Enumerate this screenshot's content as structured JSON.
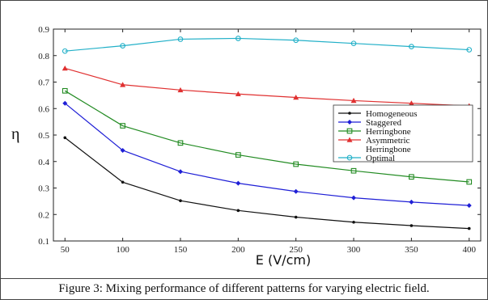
{
  "chart_data": {
    "type": "line",
    "xlabel": "E (V/cm)",
    "ylabel": "η",
    "xlim": [
      40,
      410
    ],
    "ylim": [
      0.1,
      0.9
    ],
    "x": [
      50,
      100,
      150,
      200,
      250,
      300,
      350,
      400
    ],
    "xticks": [
      "50",
      "100",
      "150",
      "200",
      "250",
      "300",
      "350",
      "400"
    ],
    "yticks": [
      "0.1",
      "0.2",
      "0.3",
      "0.4",
      "0.5",
      "0.6",
      "0.7",
      "0.8",
      "0.9"
    ],
    "grid": false,
    "legend_position": "right",
    "series": [
      {
        "name": "Homogeneous",
        "color": "#111111",
        "marker": "dot",
        "values": [
          0.49,
          0.322,
          0.252,
          0.215,
          0.19,
          0.171,
          0.158,
          0.147
        ]
      },
      {
        "name": "Staggered",
        "color": "#1f1fd6",
        "marker": "diamond",
        "values": [
          0.62,
          0.442,
          0.362,
          0.318,
          0.287,
          0.263,
          0.247,
          0.234
        ]
      },
      {
        "name": "Herringbone",
        "color": "#228b22",
        "marker": "square",
        "values": [
          0.667,
          0.535,
          0.47,
          0.425,
          0.39,
          0.365,
          0.342,
          0.323
        ]
      },
      {
        "name": "Asymmetric Herringbone",
        "legend_lines": [
          "Asymmetric",
          "Herringbone"
        ],
        "color": "#e03030",
        "marker": "triangle",
        "values": [
          0.752,
          0.69,
          0.67,
          0.655,
          0.642,
          0.63,
          0.62,
          0.61
        ]
      },
      {
        "name": "Optimal",
        "color": "#22b0c8",
        "marker": "circle",
        "values": [
          0.817,
          0.837,
          0.862,
          0.865,
          0.858,
          0.846,
          0.834,
          0.822
        ]
      }
    ]
  },
  "figure": {
    "caption": "Figure 3: Mixing performance of different patterns for varying electric field."
  }
}
